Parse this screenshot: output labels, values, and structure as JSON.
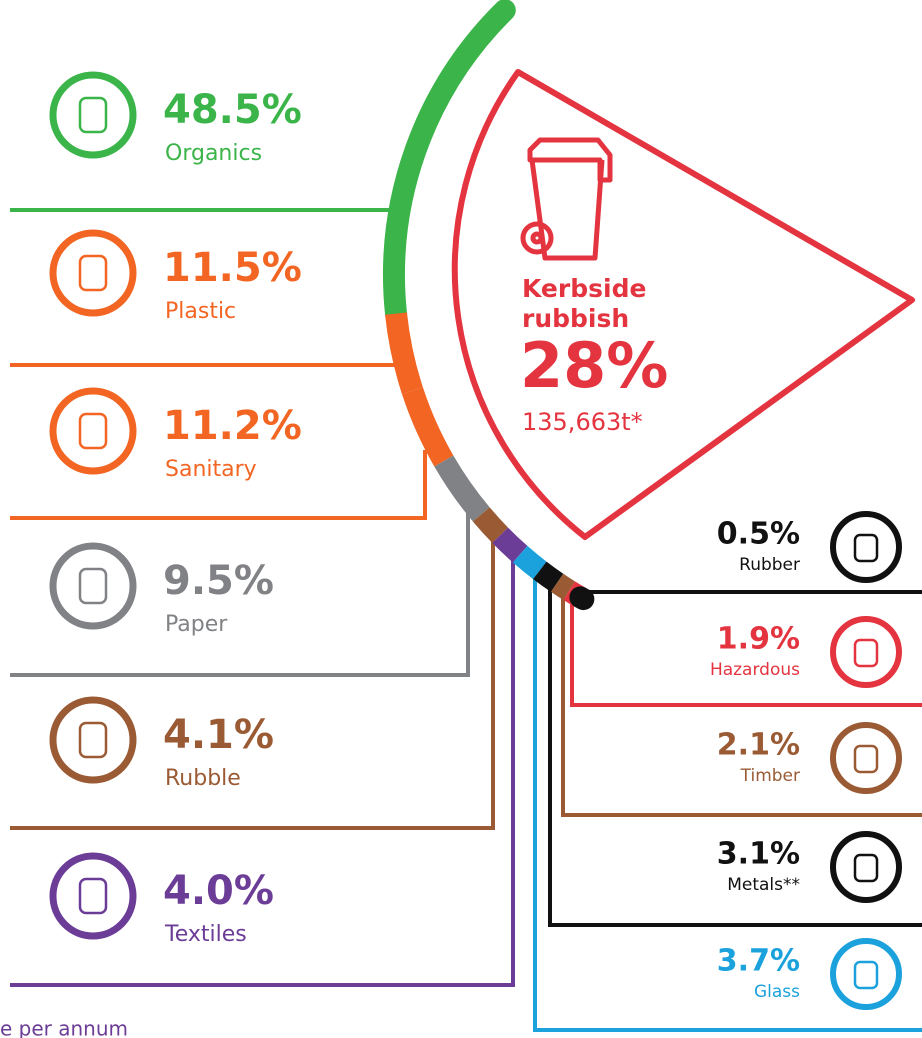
{
  "chart_data": {
    "type": "arc",
    "categories": [
      "Organics",
      "Plastic",
      "Sanitary",
      "Paper",
      "Rubble",
      "Textiles",
      "Glass",
      "Metals**",
      "Timber",
      "Hazardous",
      "Rubber"
    ],
    "values": [
      48.5,
      11.5,
      11.2,
      9.5,
      4.1,
      4.0,
      3.7,
      3.1,
      2.1,
      1.9,
      0.5
    ],
    "value_labels": [
      "48.5%",
      "11.5%",
      "11.2%",
      "9.5%",
      "4.1%",
      "4.0%",
      "3.7%",
      "3.1%",
      "2.1%",
      "1.9%",
      "0.5%"
    ],
    "colors": [
      "#3bb44a",
      "#f26522",
      "#f26522",
      "#808285",
      "#9a5b34",
      "#6c3d97",
      "#1ba1dc",
      "#111111",
      "#9a5b34",
      "#e3343f",
      "#111111"
    ],
    "label_colors": [
      "#3bb44a",
      "#f26522",
      "#f26522",
      "#808285",
      "#9a5b34",
      "#6c3d97",
      "#1ba1dc",
      "#111111",
      "#9a5b34",
      "#e3343f",
      "#111111"
    ],
    "highlight": {
      "label": [
        "Kerbside",
        "rubbish"
      ],
      "value": 28,
      "value_label": "28%",
      "tonnes": "135,663t*",
      "color": "#e3343f"
    },
    "footnote": "e per annum"
  }
}
